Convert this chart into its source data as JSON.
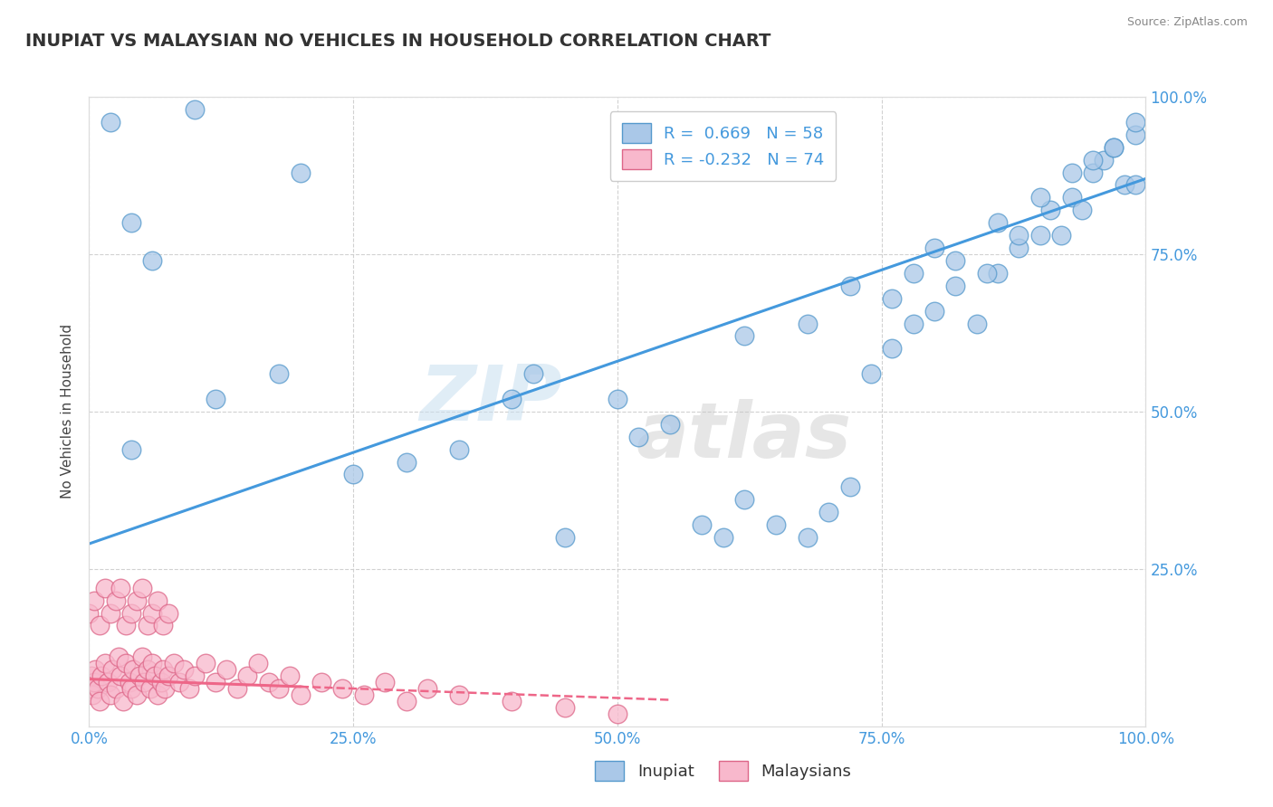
{
  "title": "INUPIAT VS MALAYSIAN NO VEHICLES IN HOUSEHOLD CORRELATION CHART",
  "source": "Source: ZipAtlas.com",
  "ylabel": "No Vehicles in Household",
  "xlim": [
    0.0,
    1.0
  ],
  "ylim": [
    0.0,
    1.0
  ],
  "x_ticks": [
    0.0,
    0.25,
    0.5,
    0.75,
    1.0
  ],
  "y_ticks": [
    0.25,
    0.5,
    0.75,
    1.0
  ],
  "x_tick_labels": [
    "0.0%",
    "25.0%",
    "50.0%",
    "75.0%",
    "100.0%"
  ],
  "y_tick_labels_left": [
    "25.0%",
    "50.0%",
    "75.0%",
    "100.0%"
  ],
  "y_tick_labels_right": [
    "25.0%",
    "50.0%",
    "75.0%",
    "100.0%"
  ],
  "inupiat_color": "#aac8e8",
  "inupiat_edge_color": "#5599cc",
  "malaysian_color": "#f8b8cc",
  "malaysian_edge_color": "#dd6688",
  "trend_blue_color": "#4499dd",
  "trend_pink_color": "#ee6688",
  "R_inupiat": 0.669,
  "N_inupiat": 58,
  "R_malaysian": -0.232,
  "N_malaysian": 74,
  "watermark_zip": "ZIP",
  "watermark_atlas": "atlas",
  "background_color": "#ffffff",
  "grid_color": "#cccccc",
  "tick_color": "#4499dd",
  "inupiat_x": [
    0.02,
    0.1,
    0.2,
    0.04,
    0.06,
    0.04,
    0.12,
    0.18,
    0.25,
    0.3,
    0.35,
    0.4,
    0.42,
    0.45,
    0.5,
    0.52,
    0.55,
    0.58,
    0.6,
    0.62,
    0.65,
    0.68,
    0.7,
    0.72,
    0.74,
    0.76,
    0.78,
    0.8,
    0.82,
    0.84,
    0.86,
    0.88,
    0.9,
    0.91,
    0.92,
    0.93,
    0.94,
    0.95,
    0.96,
    0.97,
    0.98,
    0.99,
    0.99,
    0.99,
    0.76,
    0.78,
    0.8,
    0.85,
    0.88,
    0.9,
    0.93,
    0.95,
    0.97,
    0.62,
    0.68,
    0.72,
    0.82,
    0.86
  ],
  "inupiat_y": [
    0.96,
    0.98,
    0.88,
    0.8,
    0.74,
    0.44,
    0.52,
    0.56,
    0.4,
    0.42,
    0.44,
    0.52,
    0.56,
    0.3,
    0.52,
    0.46,
    0.48,
    0.32,
    0.3,
    0.36,
    0.32,
    0.3,
    0.34,
    0.38,
    0.56,
    0.6,
    0.64,
    0.66,
    0.7,
    0.64,
    0.72,
    0.76,
    0.78,
    0.82,
    0.78,
    0.84,
    0.82,
    0.88,
    0.9,
    0.92,
    0.86,
    0.94,
    0.96,
    0.86,
    0.68,
    0.72,
    0.76,
    0.72,
    0.78,
    0.84,
    0.88,
    0.9,
    0.92,
    0.62,
    0.64,
    0.7,
    0.74,
    0.8
  ],
  "malaysian_x": [
    0.0,
    0.002,
    0.003,
    0.005,
    0.006,
    0.008,
    0.01,
    0.012,
    0.015,
    0.018,
    0.02,
    0.022,
    0.025,
    0.028,
    0.03,
    0.032,
    0.035,
    0.038,
    0.04,
    0.042,
    0.045,
    0.048,
    0.05,
    0.052,
    0.055,
    0.058,
    0.06,
    0.062,
    0.065,
    0.068,
    0.07,
    0.072,
    0.075,
    0.08,
    0.085,
    0.09,
    0.095,
    0.1,
    0.11,
    0.12,
    0.13,
    0.14,
    0.15,
    0.16,
    0.17,
    0.18,
    0.19,
    0.2,
    0.22,
    0.24,
    0.26,
    0.28,
    0.3,
    0.32,
    0.35,
    0.4,
    0.45,
    0.5,
    0.0,
    0.005,
    0.01,
    0.015,
    0.02,
    0.025,
    0.03,
    0.035,
    0.04,
    0.045,
    0.05,
    0.055,
    0.06,
    0.065,
    0.07,
    0.075
  ],
  "malaysian_y": [
    0.06,
    0.08,
    0.05,
    0.07,
    0.09,
    0.06,
    0.04,
    0.08,
    0.1,
    0.07,
    0.05,
    0.09,
    0.06,
    0.11,
    0.08,
    0.04,
    0.1,
    0.07,
    0.06,
    0.09,
    0.05,
    0.08,
    0.11,
    0.07,
    0.09,
    0.06,
    0.1,
    0.08,
    0.05,
    0.07,
    0.09,
    0.06,
    0.08,
    0.1,
    0.07,
    0.09,
    0.06,
    0.08,
    0.1,
    0.07,
    0.09,
    0.06,
    0.08,
    0.1,
    0.07,
    0.06,
    0.08,
    0.05,
    0.07,
    0.06,
    0.05,
    0.07,
    0.04,
    0.06,
    0.05,
    0.04,
    0.03,
    0.02,
    0.18,
    0.2,
    0.16,
    0.22,
    0.18,
    0.2,
    0.22,
    0.16,
    0.18,
    0.2,
    0.22,
    0.16,
    0.18,
    0.2,
    0.16,
    0.18
  ]
}
